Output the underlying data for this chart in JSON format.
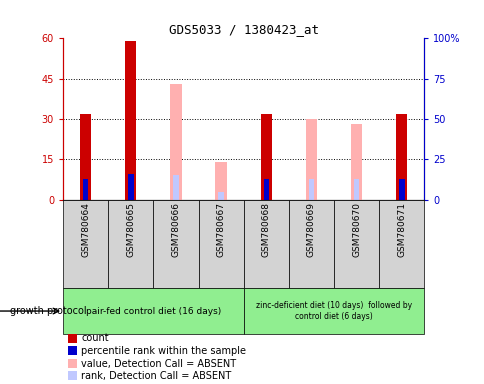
{
  "title": "GDS5033 / 1380423_at",
  "samples": [
    "GSM780664",
    "GSM780665",
    "GSM780666",
    "GSM780667",
    "GSM780668",
    "GSM780669",
    "GSM780670",
    "GSM780671"
  ],
  "count_values": [
    32,
    59,
    null,
    null,
    32,
    null,
    null,
    32
  ],
  "count_color": "#cc0000",
  "percentile_rank_values": [
    13,
    16,
    null,
    null,
    13,
    13,
    null,
    13
  ],
  "percentile_rank_color": "#0000cc",
  "absent_value_values": [
    null,
    null,
    43,
    14,
    null,
    30,
    28,
    null
  ],
  "absent_value_color": "#ffb0b0",
  "absent_rank_values": [
    null,
    null,
    15,
    5,
    null,
    13,
    13,
    null
  ],
  "absent_rank_color": "#c0c8ff",
  "left_ylim": [
    0,
    60
  ],
  "left_yticks": [
    0,
    15,
    30,
    45,
    60
  ],
  "left_ytick_labels": [
    "0",
    "15",
    "30",
    "45",
    "60"
  ],
  "right_yticks": [
    0,
    25,
    50,
    75,
    100
  ],
  "right_ytick_labels": [
    "0",
    "25",
    "50",
    "75",
    "100%"
  ],
  "hlines": [
    15,
    30,
    45
  ],
  "group1_label": "pair-fed control diet (16 days)",
  "group2_label": "zinc-deficient diet (10 days)  followed by\ncontrol diet (6 days)",
  "growth_protocol_label": "growth protocol",
  "legend_items": [
    {
      "label": "count",
      "color": "#cc0000"
    },
    {
      "label": "percentile rank within the sample",
      "color": "#0000cc"
    },
    {
      "label": "value, Detection Call = ABSENT",
      "color": "#ffb0b0"
    },
    {
      "label": "rank, Detection Call = ABSENT",
      "color": "#c0c8ff"
    }
  ],
  "bar_width": 0.25,
  "sample_bg_color": "#d3d3d3",
  "group_bg_color": "#90ee90",
  "left_axis_color": "#cc0000",
  "right_axis_color": "#0000cc",
  "absent_bar_width": 0.25,
  "rank_bar_width": 0.12
}
